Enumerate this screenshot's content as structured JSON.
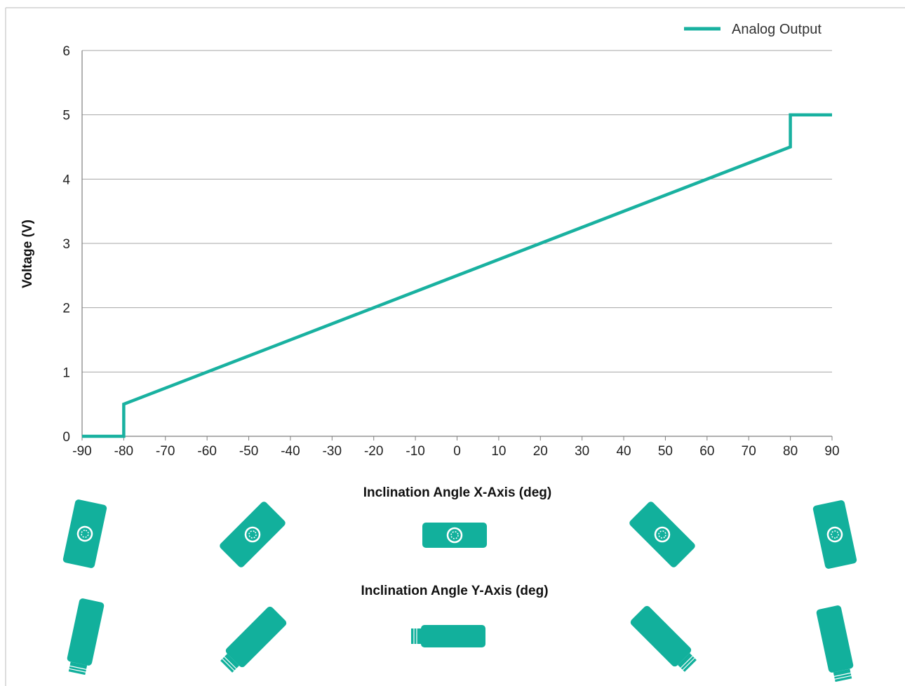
{
  "chart_data": {
    "type": "line",
    "title": "",
    "xlabel": "Inclination Angle X-Axis (deg)",
    "xlabel2": "Inclination Angle Y-Axis (deg)",
    "ylabel": "Voltage (V)",
    "xlim": [
      -90,
      90
    ],
    "ylim": [
      0,
      6
    ],
    "xticks": [
      "-90",
      "-80",
      "-70",
      "-60",
      "-50",
      "-40",
      "-30",
      "-20",
      "-10",
      "0",
      "10",
      "20",
      "30",
      "40",
      "50",
      "60",
      "70",
      "80",
      "90"
    ],
    "yticks": [
      "0",
      "1",
      "2",
      "3",
      "4",
      "5",
      "6"
    ],
    "grid": true,
    "legend_position": "top-right",
    "series": [
      {
        "name": "Analog Output",
        "color": "#19b1a0",
        "points": [
          [
            -90,
            0
          ],
          [
            -80,
            0
          ],
          [
            -80,
            0.5
          ],
          [
            80,
            4.5
          ],
          [
            80,
            5
          ],
          [
            90,
            5
          ]
        ]
      }
    ]
  },
  "orientation_icons": {
    "x_axis": [
      {
        "id": "x-neg90",
        "shape": "connector-face",
        "angle_deg": -90
      },
      {
        "id": "x-neg45",
        "shape": "connector-face",
        "angle_deg": -45
      },
      {
        "id": "x-0",
        "shape": "connector-face",
        "angle_deg": 0
      },
      {
        "id": "x-pos45",
        "shape": "connector-face",
        "angle_deg": 45
      },
      {
        "id": "x-pos90",
        "shape": "connector-face",
        "angle_deg": 90
      }
    ],
    "y_axis": [
      {
        "id": "y-neg90",
        "shape": "sensor-side",
        "angle_deg": -90
      },
      {
        "id": "y-neg45",
        "shape": "sensor-side",
        "angle_deg": -45
      },
      {
        "id": "y-0",
        "shape": "sensor-side",
        "angle_deg": 0
      },
      {
        "id": "y-pos45",
        "shape": "sensor-side",
        "angle_deg": 45
      },
      {
        "id": "y-pos90",
        "shape": "sensor-side",
        "angle_deg": 90
      }
    ],
    "color": "#12b09c"
  }
}
